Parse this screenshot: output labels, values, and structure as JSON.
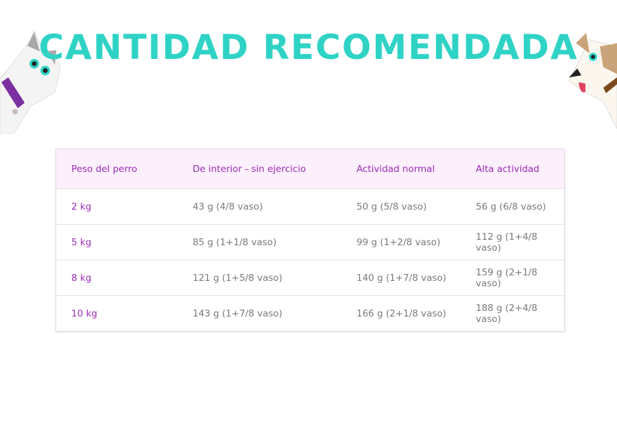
{
  "title": "CANTIDAD RECOMENDADA",
  "colors": {
    "title": "#2fd3c6",
    "header_text": "#9b2bb5",
    "header_bg": "#fdf0fd"
  },
  "table": {
    "headers": [
      "Peso del perro",
      "De interior - sin ejercicio",
      "Actividad normal",
      "Alta actividad"
    ],
    "rows": [
      [
        "2 kg",
        "43 g (4/8 vaso)",
        "50 g (5/8 vaso)",
        "56 g (6/8 vaso)"
      ],
      [
        "5 kg",
        "85 g (1+1/8 vaso)",
        "99 g (1+2/8 vaso)",
        "112 g (1+4/8 vaso)"
      ],
      [
        "8 kg",
        "121 g (1+5/8 vaso)",
        "140 g (1+7/8 vaso)",
        "159 g (2+1/8 vaso)"
      ],
      [
        "10 kg",
        "143 g (1+7/8 vaso)",
        "166 g (2+1/8 vaso)",
        "188 g (2+4/8 vaso)"
      ]
    ]
  }
}
